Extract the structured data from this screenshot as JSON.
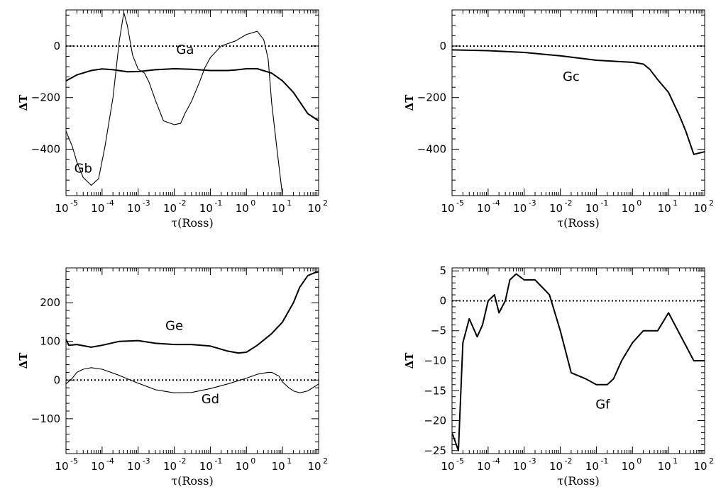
{
  "chart_data": [
    {
      "type": "line",
      "xlabel": "τ(Ross)",
      "ylabel": "ΔT",
      "xscale": "log",
      "xlim": [
        1e-05,
        100
      ],
      "ylim": [
        -580,
        140
      ],
      "xtick_labels": [
        "10⁻⁵",
        "10⁻⁴",
        "10⁻³",
        "10⁻²",
        "10⁻¹",
        "10⁰",
        "10¹",
        "10²"
      ],
      "yticks": [
        -400,
        -200,
        0
      ],
      "zero_line": "dotted",
      "annotations": [
        {
          "text": "Ga",
          "x": 0.02,
          "y": -30
        },
        {
          "text": "Gb",
          "x": 3e-05,
          "y": -490
        }
      ],
      "series": [
        {
          "label": "Ga",
          "weight": "thick",
          "x": [
            1e-05,
            2e-05,
            5e-05,
            0.0001,
            0.0002,
            0.0005,
            0.001,
            0.003,
            0.01,
            0.03,
            0.1,
            0.3,
            0.5,
            1,
            2,
            5,
            10,
            20,
            50,
            100
          ],
          "y": [
            -135,
            -112,
            -95,
            -89,
            -92,
            -100,
            -99,
            -92,
            -88,
            -90,
            -95,
            -95,
            -93,
            -88,
            -88,
            -105,
            -135,
            -180,
            -262,
            -290
          ]
        },
        {
          "label": "Gb",
          "weight": "thin",
          "x": [
            1e-05,
            1.5e-05,
            2e-05,
            3e-05,
            5e-05,
            8e-05,
            0.00012,
            0.0002,
            0.0003,
            0.0004,
            0.0005,
            0.0007,
            0.001,
            0.0015,
            0.002,
            0.003,
            0.005,
            0.01,
            0.015,
            0.02,
            0.03,
            0.05,
            0.07,
            0.1,
            0.2,
            0.5,
            1,
            2,
            3,
            4,
            5,
            7,
            10,
            15,
            20
          ],
          "y": [
            -330,
            -390,
            -450,
            -510,
            -540,
            -515,
            -390,
            -200,
            20,
            130,
            80,
            -35,
            -90,
            -105,
            -140,
            -210,
            -290,
            -305,
            -300,
            -260,
            -215,
            -140,
            -85,
            -45,
            0,
            20,
            45,
            57,
            25,
            -50,
            -220,
            -400,
            -580,
            -580,
            -580
          ]
        }
      ]
    },
    {
      "type": "line",
      "xlabel": "τ(Ross)",
      "ylabel": "ΔT",
      "xscale": "log",
      "xlim": [
        1e-05,
        100
      ],
      "ylim": [
        -580,
        140
      ],
      "xtick_labels": [
        "10⁻⁵",
        "10⁻⁴",
        "10⁻³",
        "10⁻²",
        "10⁻¹",
        "10⁰",
        "10¹",
        "10²"
      ],
      "yticks": [
        -400,
        -200,
        0
      ],
      "zero_line": "dotted",
      "annotations": [
        {
          "text": "Gc",
          "x": 0.02,
          "y": -135
        }
      ],
      "series": [
        {
          "label": "Gc",
          "weight": "thick",
          "x": [
            1e-05,
            0.0001,
            0.001,
            0.01,
            0.1,
            1,
            2,
            3,
            5,
            10,
            20,
            30,
            50,
            100
          ],
          "y": [
            -15,
            -18,
            -25,
            -38,
            -55,
            -63,
            -70,
            -90,
            -130,
            -180,
            -270,
            -330,
            -420,
            -410
          ]
        }
      ]
    },
    {
      "type": "line",
      "xlabel": "τ(Ross)",
      "ylabel": "ΔT",
      "xscale": "log",
      "xlim": [
        1e-05,
        100
      ],
      "ylim": [
        -190,
        290
      ],
      "xtick_labels": [
        "10⁻⁵",
        "10⁻⁴",
        "10⁻³",
        "10⁻²",
        "10⁻¹",
        "10⁰",
        "10¹",
        "10²"
      ],
      "yticks": [
        -100,
        0,
        100,
        200
      ],
      "zero_line": "dotted",
      "annotations": [
        {
          "text": "Ge",
          "x": 0.01,
          "y": 130
        },
        {
          "text": "Gd",
          "x": 0.1,
          "y": -60
        }
      ],
      "series": [
        {
          "label": "Ge",
          "weight": "thick",
          "x": [
            1e-05,
            1.2e-05,
            2e-05,
            5e-05,
            0.0001,
            0.0003,
            0.001,
            0.003,
            0.01,
            0.03,
            0.1,
            0.3,
            0.6,
            1,
            2,
            5,
            10,
            20,
            30,
            50,
            80,
            100
          ],
          "y": [
            105,
            90,
            92,
            85,
            90,
            100,
            102,
            95,
            92,
            92,
            88,
            75,
            70,
            72,
            90,
            120,
            150,
            200,
            240,
            270,
            278,
            280
          ]
        },
        {
          "label": "Gd",
          "weight": "thin",
          "x": [
            1e-05,
            1.5e-05,
            2e-05,
            3e-05,
            5e-05,
            0.0001,
            0.0003,
            0.001,
            0.003,
            0.01,
            0.03,
            0.1,
            0.3,
            1,
            2,
            4,
            5,
            8,
            10,
            15,
            20,
            30,
            50,
            100
          ],
          "y": [
            -10,
            5,
            20,
            28,
            32,
            28,
            12,
            -8,
            -25,
            -33,
            -32,
            -22,
            -10,
            5,
            15,
            20,
            20,
            10,
            -5,
            -20,
            -28,
            -33,
            -28,
            -10
          ]
        }
      ]
    },
    {
      "type": "line",
      "xlabel": "τ(Ross)",
      "ylabel": "ΔT",
      "xscale": "log",
      "xlim": [
        1e-05,
        100
      ],
      "ylim": [
        -25.5,
        5.5
      ],
      "xtick_labels": [
        "10⁻⁵",
        "10⁻⁴",
        "10⁻³",
        "10⁻²",
        "10⁻¹",
        "10⁰",
        "10¹",
        "10²"
      ],
      "yticks": [
        -25,
        -20,
        -15,
        -10,
        -5,
        0,
        5
      ],
      "zero_line": "dotted",
      "annotations": [
        {
          "text": "Gf",
          "x": 0.15,
          "y": -18
        }
      ],
      "series": [
        {
          "label": "Gf",
          "weight": "thick",
          "x": [
            1e-05,
            1.5e-05,
            2e-05,
            3e-05,
            5e-05,
            7e-05,
            0.0001,
            0.00015,
            0.0002,
            0.0003,
            0.0004,
            0.0006,
            0.001,
            0.0015,
            0.002,
            0.005,
            0.01,
            0.02,
            0.05,
            0.1,
            0.2,
            0.3,
            0.5,
            1,
            2,
            5,
            10,
            50,
            100
          ],
          "y": [
            -22,
            -25,
            -7,
            -3,
            -6,
            -4,
            0,
            1,
            -2,
            0,
            3.5,
            4.5,
            3.5,
            3.5,
            3.5,
            1,
            -5,
            -12,
            -13,
            -14,
            -14,
            -13,
            -10,
            -7,
            -5,
            -5,
            -2,
            -10,
            -10
          ]
        }
      ]
    }
  ]
}
